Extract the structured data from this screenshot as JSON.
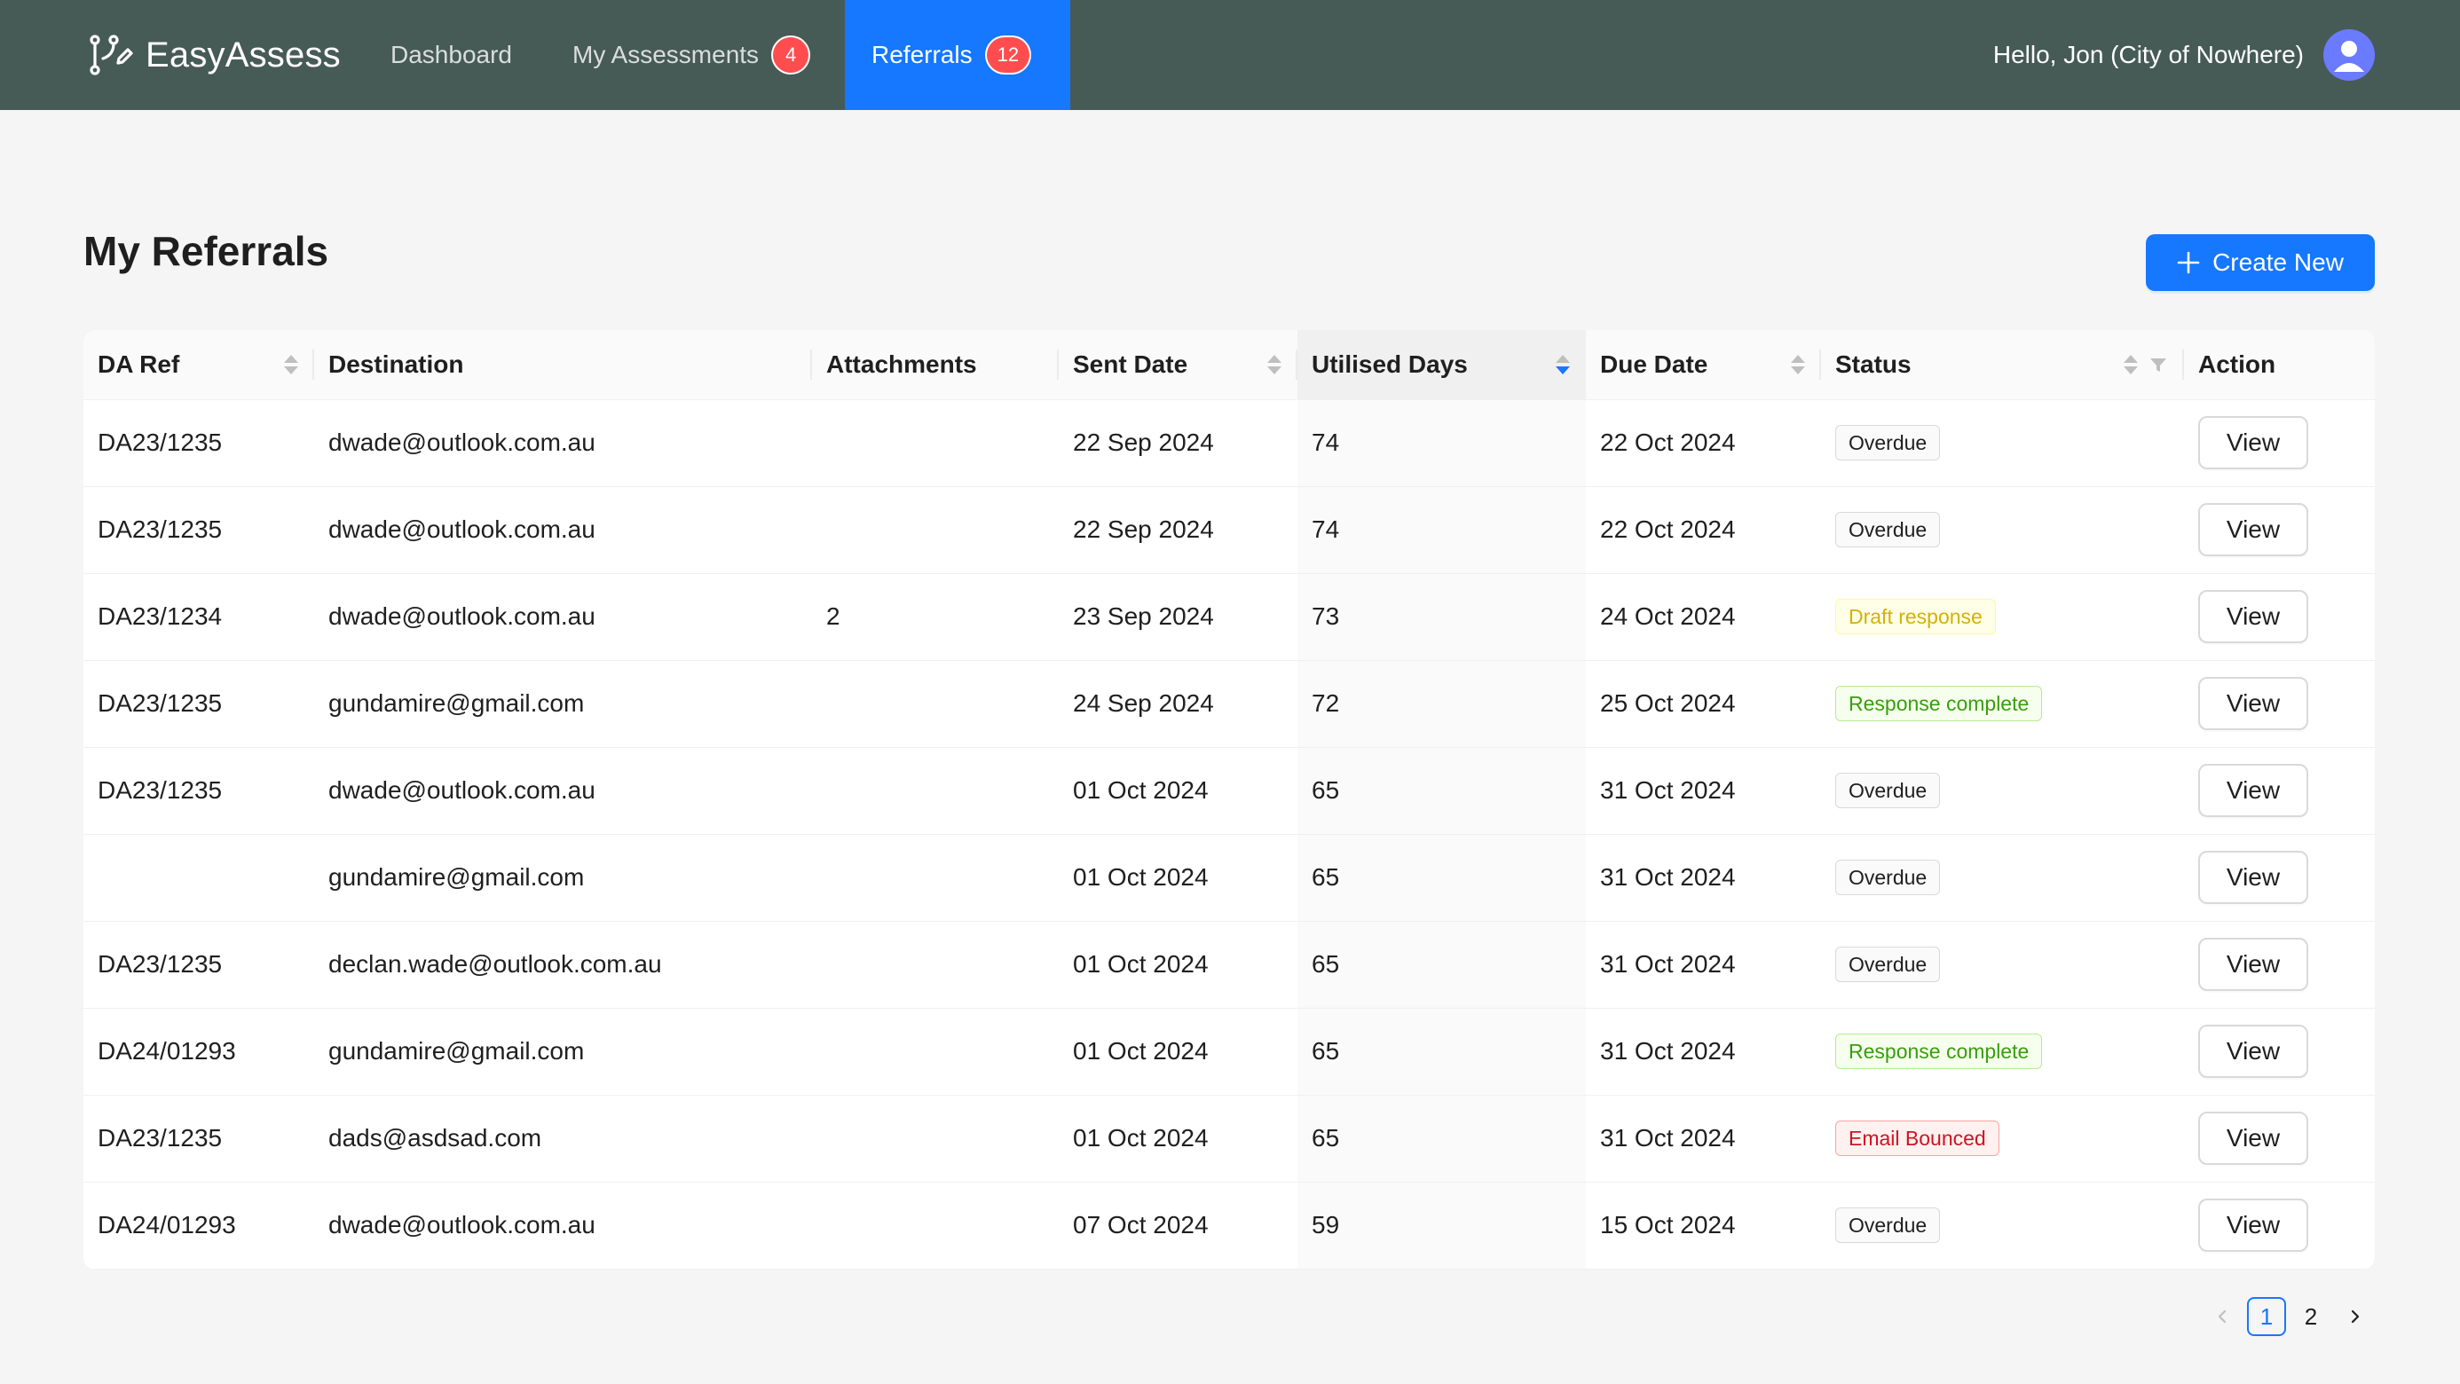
{
  "app": {
    "name": "EasyAssess"
  },
  "nav": {
    "items": [
      {
        "label": "Dashboard"
      },
      {
        "label": "My Assessments",
        "badge": "4"
      },
      {
        "label": "Referrals",
        "badge": "12",
        "active": true
      }
    ],
    "greeting": "Hello, Jon (City of Nowhere)"
  },
  "page": {
    "title": "My Referrals",
    "create_label": "Create New"
  },
  "table": {
    "columns": [
      "DA Ref",
      "Destination",
      "Attachments",
      "Sent Date",
      "Utilised Days",
      "Due Date",
      "Status",
      "Action"
    ],
    "rows": [
      {
        "da_ref": "DA23/1235",
        "destination": "dwade@outlook.com.au",
        "attachments": "",
        "sent": "22 Sep 2024",
        "days": "74",
        "due": "22 Oct 2024",
        "status": "Overdue",
        "status_color": "default",
        "action": "View"
      },
      {
        "da_ref": "DA23/1235",
        "destination": "dwade@outlook.com.au",
        "attachments": "",
        "sent": "22 Sep 2024",
        "days": "74",
        "due": "22 Oct 2024",
        "status": "Overdue",
        "status_color": "default",
        "action": "View"
      },
      {
        "da_ref": "DA23/1234",
        "destination": "dwade@outlook.com.au",
        "attachments": "2",
        "sent": "23 Sep 2024",
        "days": "73",
        "due": "24 Oct 2024",
        "status": "Draft response",
        "status_color": "gold",
        "action": "View"
      },
      {
        "da_ref": "DA23/1235",
        "destination": "gundamire@gmail.com",
        "attachments": "",
        "sent": "24 Sep 2024",
        "days": "72",
        "due": "25 Oct 2024",
        "status": "Response complete",
        "status_color": "green",
        "action": "View"
      },
      {
        "da_ref": "DA23/1235",
        "destination": "dwade@outlook.com.au",
        "attachments": "",
        "sent": "01 Oct 2024",
        "days": "65",
        "due": "31 Oct 2024",
        "status": "Overdue",
        "status_color": "default",
        "action": "View"
      },
      {
        "da_ref": "",
        "destination": "gundamire@gmail.com",
        "attachments": "",
        "sent": "01 Oct 2024",
        "days": "65",
        "due": "31 Oct 2024",
        "status": "Overdue",
        "status_color": "default",
        "action": "View"
      },
      {
        "da_ref": "DA23/1235",
        "destination": "declan.wade@outlook.com.au",
        "attachments": "",
        "sent": "01 Oct 2024",
        "days": "65",
        "due": "31 Oct 2024",
        "status": "Overdue",
        "status_color": "default",
        "action": "View"
      },
      {
        "da_ref": "DA24/01293",
        "destination": "gundamire@gmail.com",
        "attachments": "",
        "sent": "01 Oct 2024",
        "days": "65",
        "due": "31 Oct 2024",
        "status": "Response complete",
        "status_color": "green",
        "action": "View"
      },
      {
        "da_ref": "DA23/1235",
        "destination": "dads@asdsad.com",
        "attachments": "",
        "sent": "01 Oct 2024",
        "days": "65",
        "due": "31 Oct 2024",
        "status": "Email Bounced",
        "status_color": "red",
        "action": "View"
      },
      {
        "da_ref": "DA24/01293",
        "destination": "dwade@outlook.com.au",
        "attachments": "",
        "sent": "07 Oct 2024",
        "days": "59",
        "due": "15 Oct 2024",
        "status": "Overdue",
        "status_color": "default",
        "action": "View"
      }
    ]
  },
  "pagination": {
    "pages": [
      "1",
      "2"
    ],
    "current": "1"
  },
  "colors": {
    "nav_bg": "#475b56",
    "primary": "#1677ff",
    "badge": "#ff4d4f"
  }
}
